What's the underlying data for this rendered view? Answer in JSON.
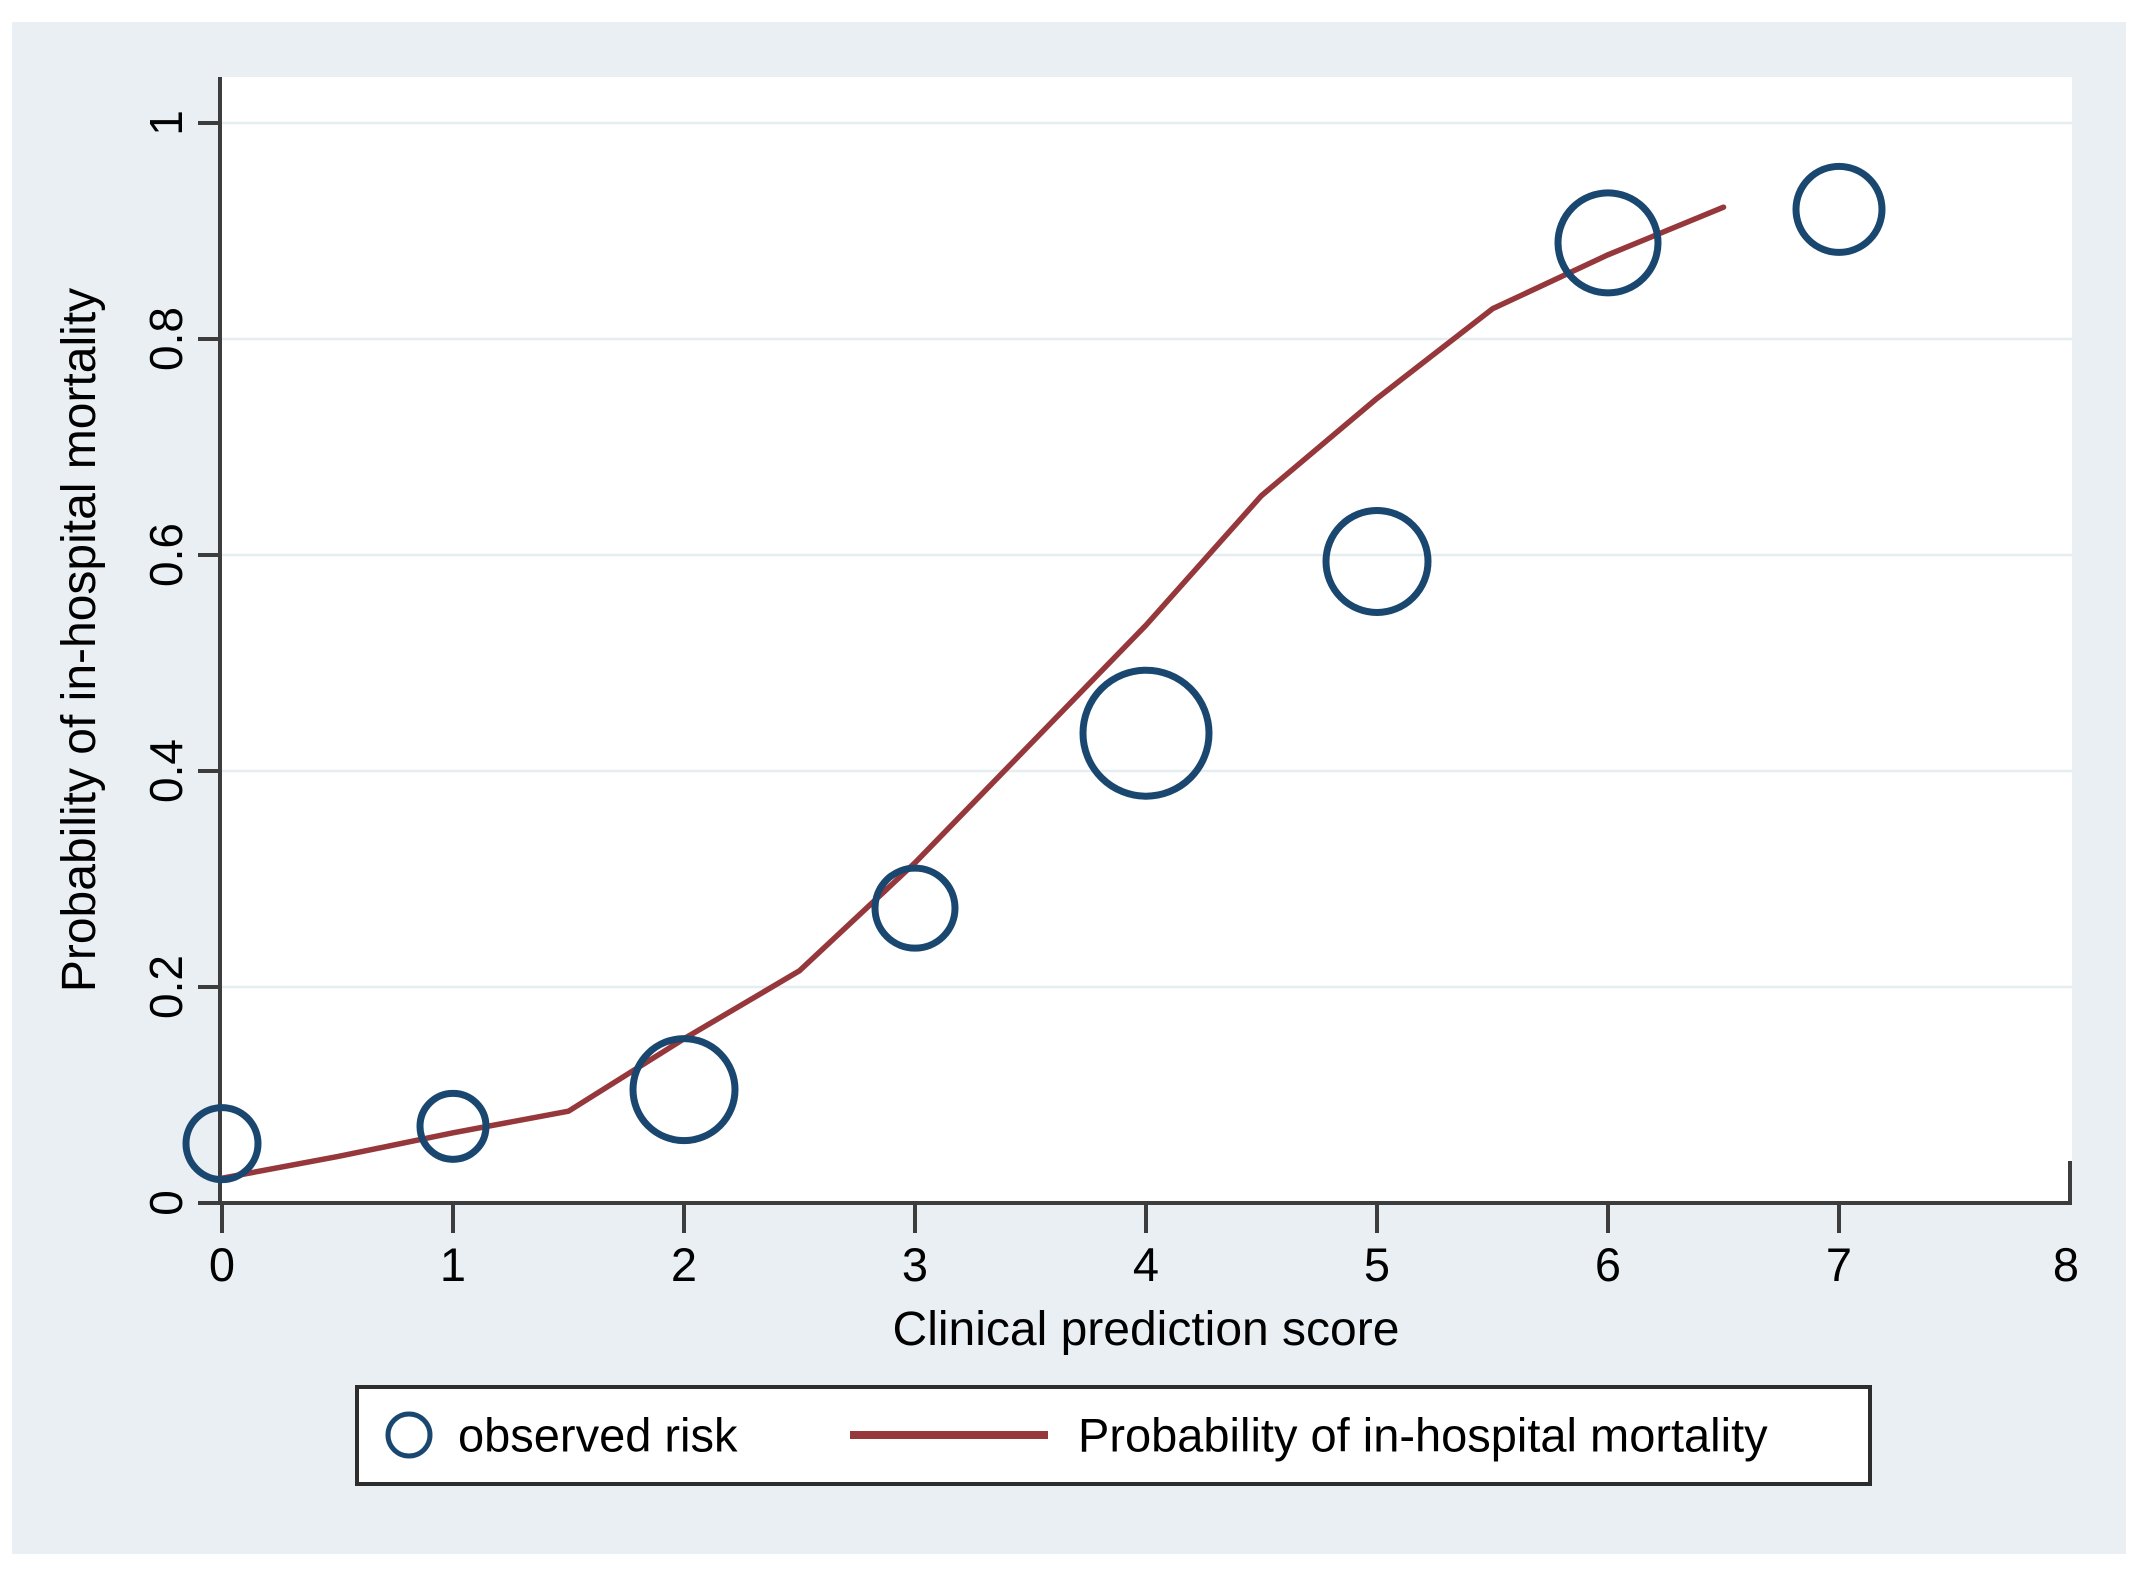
{
  "chart_data": {
    "type": "scatter",
    "title": "",
    "xlabel": "Clinical prediction score",
    "ylabel": "Probability of in-hospital mortality",
    "xlim": [
      0,
      8
    ],
    "ylim": [
      0,
      1
    ],
    "x_ticks": [
      0,
      1,
      2,
      3,
      4,
      5,
      6,
      7,
      8
    ],
    "x_ticks_with_marks": [
      0,
      1,
      2,
      3,
      4,
      5,
      6,
      7
    ],
    "y_ticks": [
      0,
      0.2,
      0.4,
      0.6,
      0.8,
      1
    ],
    "y_tick_labels": [
      "0",
      "0.2",
      "0.4",
      "0.6",
      "0.8",
      "1"
    ],
    "grid": "horizontal-only",
    "legend_position": "bottom",
    "series": [
      {
        "name": "observed risk",
        "type": "scatter",
        "marker": "open-circle",
        "color": "#1a476f",
        "points": [
          {
            "x": 0,
            "y": 0.055,
            "r": 36
          },
          {
            "x": 1,
            "y": 0.071,
            "r": 33
          },
          {
            "x": 2,
            "y": 0.105,
            "r": 51
          },
          {
            "x": 3,
            "y": 0.273,
            "r": 40
          },
          {
            "x": 4,
            "y": 0.435,
            "r": 63
          },
          {
            "x": 5,
            "y": 0.594,
            "r": 51
          },
          {
            "x": 6,
            "y": 0.889,
            "r": 50
          },
          {
            "x": 7,
            "y": 0.92,
            "r": 43
          }
        ]
      },
      {
        "name": "Probability of in-hospital mortality",
        "type": "line",
        "color": "#96383b",
        "points": [
          [
            0,
            0.023
          ],
          [
            0.5,
            0.043
          ],
          [
            1,
            0.065
          ],
          [
            1.5,
            0.085
          ],
          [
            2,
            0.152
          ],
          [
            2.5,
            0.215
          ],
          [
            3,
            0.315
          ],
          [
            3.5,
            0.425
          ],
          [
            4,
            0.535
          ],
          [
            4.5,
            0.655
          ],
          [
            5,
            0.745
          ],
          [
            5.5,
            0.828
          ],
          [
            6,
            0.878
          ],
          [
            6.5,
            0.922
          ]
        ]
      }
    ]
  },
  "colors": {
    "canvas_bg": "#e9eff3",
    "plot_bg": "#ffffff",
    "gridline": "#e4edf0",
    "axis": "#3d3d3d",
    "text": "#000000",
    "navy": "#1a476f",
    "maroon": "#96383b",
    "legend_border": "#2d2d2d",
    "legend_bg": "#ffffff"
  }
}
